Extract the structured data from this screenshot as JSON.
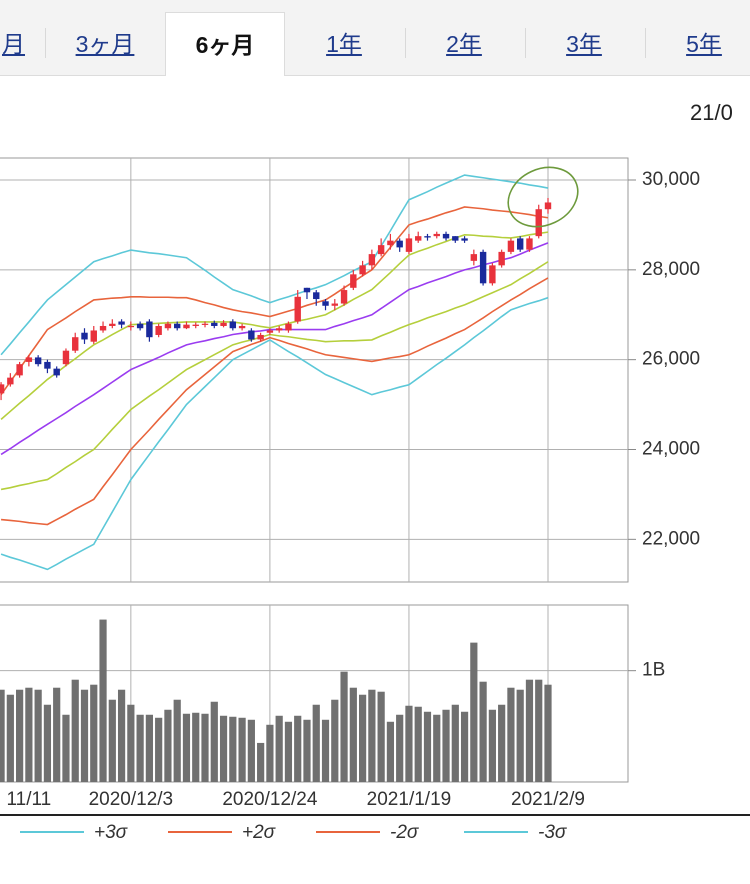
{
  "tabs": {
    "items": [
      "月",
      "3ヶ月",
      "6ヶ月",
      "1年",
      "2年",
      "3年",
      "5年"
    ],
    "selected": 2
  },
  "date_text": "21/0",
  "chart_data": [
    {
      "type": "candlestick",
      "up_color": "#e8323c",
      "down_color": "#1a2a9c",
      "open": [
        25250,
        25450,
        25650,
        25950,
        26050,
        25950,
        25800,
        25900,
        26200,
        26600,
        26400,
        26650,
        26750,
        26850,
        26750,
        26800,
        26850,
        26550,
        26700,
        26800,
        26700,
        26750,
        26780,
        26820,
        26750,
        26850,
        26700,
        26650,
        26450,
        26600,
        26650,
        26650,
        26850,
        27600,
        27500,
        27300,
        27200,
        27250,
        27600,
        27900,
        28100,
        28350,
        28550,
        28650,
        28400,
        28650,
        28750,
        28750,
        28800,
        28750,
        28700,
        28200,
        28400,
        27700,
        28100,
        28400,
        28700,
        28450,
        28750,
        29350
      ],
      "high": [
        25500,
        25700,
        25950,
        26100,
        26100,
        26000,
        25850,
        26250,
        26600,
        26700,
        26750,
        26850,
        26900,
        26900,
        26850,
        26850,
        26900,
        26800,
        26850,
        26850,
        26850,
        26830,
        26850,
        26870,
        26880,
        26900,
        26800,
        26700,
        26600,
        26700,
        26750,
        26850,
        27550,
        27600,
        27550,
        27350,
        27350,
        27650,
        28000,
        28200,
        28450,
        28700,
        28800,
        28700,
        28800,
        28850,
        28800,
        28850,
        28850,
        28750,
        28750,
        28450,
        28450,
        28150,
        28450,
        28700,
        28750,
        28750,
        29450,
        29600
      ],
      "low": [
        25100,
        25400,
        25600,
        25850,
        25850,
        25700,
        25600,
        25850,
        26150,
        26350,
        26350,
        26600,
        26700,
        26700,
        26650,
        26650,
        26400,
        26500,
        26650,
        26650,
        26680,
        26700,
        26720,
        26700,
        26720,
        26650,
        26650,
        26400,
        26400,
        26550,
        26600,
        26600,
        26800,
        27350,
        27200,
        27100,
        27100,
        27200,
        27550,
        27850,
        28000,
        28300,
        28450,
        28400,
        28350,
        28600,
        28650,
        28700,
        28650,
        28600,
        28600,
        28100,
        27650,
        27650,
        28050,
        28350,
        28400,
        28400,
        28700,
        29250
      ],
      "close": [
        25450,
        25600,
        25900,
        26050,
        25900,
        25800,
        25650,
        26200,
        26500,
        26450,
        26650,
        26750,
        26800,
        26780,
        26750,
        26700,
        26500,
        26750,
        26800,
        26700,
        26780,
        26780,
        26800,
        26750,
        26820,
        26700,
        26750,
        26450,
        26550,
        26650,
        26700,
        26800,
        27400,
        27500,
        27350,
        27200,
        27250,
        27550,
        27900,
        28100,
        28350,
        28550,
        28650,
        28500,
        28700,
        28750,
        28720,
        28800,
        28700,
        28650,
        28650,
        28350,
        27700,
        28100,
        28400,
        28650,
        28450,
        28700,
        29350,
        29500
      ],
      "series": [
        {
          "name": "+3σ",
          "color": "#5cc8d8",
          "values": [
            26110,
            26350,
            26600,
            26840,
            27090,
            27330,
            27500,
            27670,
            27840,
            28010,
            28180,
            28250,
            28310,
            28380,
            28440,
            28410,
            28380,
            28360,
            28330,
            28300,
            28270,
            28130,
            27990,
            27840,
            27700,
            27560,
            27490,
            27420,
            27340,
            27270,
            27340,
            27400,
            27470,
            27540,
            27600,
            27670,
            27770,
            27870,
            27980,
            28080,
            28180,
            28530,
            28870,
            29220,
            29560,
            29650,
            29740,
            29840,
            29930,
            30020,
            30110,
            30080,
            30050,
            30020,
            29990,
            29960,
            29930,
            29890,
            29860,
            29820
          ]
        },
        {
          "name": "+2σ",
          "color": "#e8643c",
          "values": [
            25220,
            25510,
            25800,
            26090,
            26380,
            26670,
            26800,
            26930,
            27070,
            27200,
            27330,
            27350,
            27370,
            27380,
            27400,
            27400,
            27390,
            27390,
            27390,
            27380,
            27380,
            27330,
            27270,
            27220,
            27160,
            27110,
            27070,
            27040,
            27000,
            26960,
            27020,
            27080,
            27140,
            27210,
            27270,
            27330,
            27460,
            27600,
            27730,
            27870,
            28000,
            28250,
            28500,
            28750,
            29000,
            29070,
            29130,
            29200,
            29270,
            29330,
            29400,
            29380,
            29360,
            29330,
            29310,
            29290,
            29260,
            29230,
            29190,
            29160
          ]
        },
        {
          "color": "#b5cf3c",
          "values": [
            24670,
            24850,
            25030,
            25200,
            25380,
            25560,
            25710,
            25870,
            26020,
            26180,
            26330,
            26440,
            26560,
            26670,
            26780,
            26790,
            26800,
            26810,
            26820,
            26830,
            26840,
            26840,
            26840,
            26840,
            26840,
            26840,
            26810,
            26780,
            26740,
            26710,
            26760,
            26810,
            26860,
            26900,
            26950,
            27000,
            27110,
            27220,
            27340,
            27450,
            27560,
            27750,
            27940,
            28140,
            28330,
            28410,
            28480,
            28560,
            28630,
            28710,
            28780,
            28770,
            28750,
            28740,
            28720,
            28710,
            28740,
            28780,
            28810,
            28840
          ]
        },
        {
          "color": "#9a3cf0",
          "values": [
            23890,
            24020,
            24160,
            24290,
            24430,
            24560,
            24690,
            24820,
            24960,
            25090,
            25220,
            25360,
            25500,
            25640,
            25780,
            25870,
            25960,
            26050,
            26150,
            26240,
            26330,
            26380,
            26420,
            26470,
            26510,
            26560,
            26590,
            26620,
            26640,
            26670,
            26670,
            26670,
            26670,
            26670,
            26670,
            26670,
            26740,
            26800,
            26870,
            26930,
            27000,
            27140,
            27280,
            27420,
            27560,
            27630,
            27710,
            27780,
            27850,
            27930,
            28000,
            28050,
            28110,
            28160,
            28220,
            28270,
            28350,
            28440,
            28520,
            28600
          ]
        },
        {
          "color": "#b5cf3c",
          "values": [
            23110,
            23150,
            23200,
            23240,
            23290,
            23330,
            23460,
            23600,
            23730,
            23870,
            24000,
            24220,
            24450,
            24670,
            24890,
            25040,
            25190,
            25330,
            25480,
            25630,
            25780,
            25890,
            26000,
            26110,
            26220,
            26330,
            26390,
            26440,
            26500,
            26560,
            26530,
            26510,
            26480,
            26450,
            26430,
            26400,
            26410,
            26420,
            26420,
            26430,
            26440,
            26530,
            26610,
            26700,
            26780,
            26850,
            26930,
            27000,
            27070,
            27150,
            27220,
            27310,
            27400,
            27490,
            27580,
            27670,
            27800,
            27920,
            28050,
            28180
          ]
        },
        {
          "name": "-2σ",
          "color": "#e8643c",
          "values": [
            22440,
            22420,
            22400,
            22370,
            22350,
            22330,
            22440,
            22550,
            22670,
            22780,
            22890,
            23170,
            23440,
            23720,
            24000,
            24220,
            24440,
            24670,
            24890,
            25110,
            25330,
            25500,
            25670,
            25840,
            26010,
            26180,
            26260,
            26340,
            26410,
            26490,
            26430,
            26360,
            26300,
            26240,
            26170,
            26110,
            26080,
            26050,
            26020,
            25990,
            25960,
            26000,
            26040,
            26070,
            26110,
            26200,
            26300,
            26390,
            26480,
            26580,
            26670,
            26800,
            26930,
            27070,
            27200,
            27330,
            27450,
            27580,
            27700,
            27820
          ]
        },
        {
          "name": "-3σ",
          "color": "#5cc8d8",
          "values": [
            21670,
            21600,
            21540,
            21470,
            21400,
            21330,
            21440,
            21560,
            21670,
            21780,
            21890,
            22250,
            22610,
            22970,
            23330,
            23610,
            23890,
            24170,
            24440,
            24720,
            25000,
            25200,
            25400,
            25600,
            25800,
            26000,
            26110,
            26220,
            26330,
            26440,
            26310,
            26180,
            26060,
            25930,
            25800,
            25670,
            25580,
            25490,
            25400,
            25310,
            25220,
            25280,
            25330,
            25390,
            25440,
            25590,
            25740,
            25890,
            26030,
            26180,
            26330,
            26490,
            26640,
            26800,
            26960,
            27110,
            27180,
            27250,
            27310,
            27380
          ]
        }
      ],
      "legend_order": [
        0,
        1,
        5,
        6
      ],
      "ylim": [
        21050,
        30490
      ],
      "yticks": [
        {
          "value": 22000,
          "label": "22,000"
        },
        {
          "value": 24000,
          "label": "24,000"
        },
        {
          "value": 26000,
          "label": "26,000"
        },
        {
          "value": 28000,
          "label": "28,000"
        },
        {
          "value": 30000,
          "label": "30,000"
        }
      ],
      "grid": true
    },
    {
      "type": "bar",
      "color": "#707070",
      "categories": [
        null,
        null,
        null,
        "11/11",
        null,
        null,
        null,
        null,
        null,
        null,
        null,
        null,
        null,
        null,
        "2020/12/3",
        null,
        null,
        null,
        null,
        null,
        null,
        null,
        null,
        null,
        null,
        null,
        null,
        null,
        null,
        "2020/12/24",
        null,
        null,
        null,
        null,
        null,
        null,
        null,
        null,
        null,
        null,
        null,
        null,
        null,
        null,
        "2021/1/19",
        null,
        null,
        null,
        null,
        null,
        null,
        null,
        null,
        null,
        null,
        null,
        null,
        null,
        null,
        "2021/2/9"
      ],
      "values": [
        829000000,
        784000000,
        829000000,
        847000000,
        829000000,
        694000000,
        847000000,
        604000000,
        919000000,
        829000000,
        874000000,
        1459000000,
        739000000,
        829000000,
        694000000,
        604000000,
        604000000,
        577000000,
        649000000,
        739000000,
        613000000,
        622000000,
        613000000,
        721000000,
        595000000,
        586000000,
        577000000,
        559000000,
        351000000,
        514000000,
        595000000,
        541000000,
        595000000,
        559000000,
        694000000,
        559000000,
        739000000,
        991000000,
        847000000,
        784000000,
        829000000,
        811000000,
        541000000,
        604000000,
        685000000,
        676000000,
        631000000,
        604000000,
        649000000,
        694000000,
        631000000,
        1252000000,
        901000000,
        649000000,
        694000000,
        847000000,
        829000000,
        919000000,
        919000000,
        874000000
      ],
      "ylim": [
        0,
        1590000000
      ],
      "yticks": [
        {
          "value": 1000000000,
          "label": "1B"
        }
      ],
      "grid": true
    }
  ]
}
